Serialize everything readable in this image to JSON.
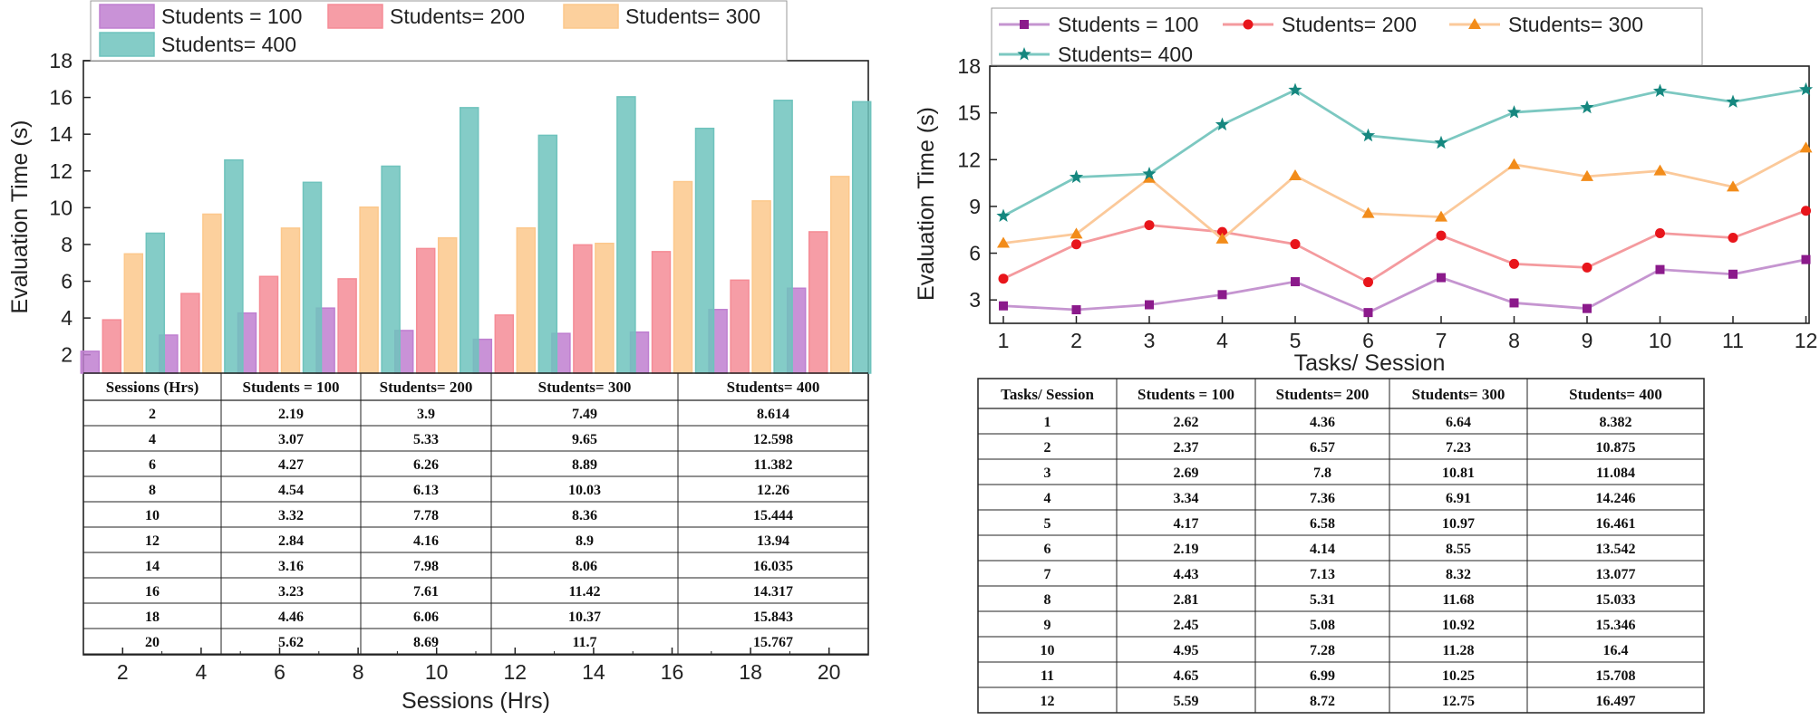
{
  "chart_data": [
    {
      "type": "bar",
      "xlabel": "Sessions (Hrs)",
      "ylabel": "Evaluation Time (s)",
      "categories": [
        "2",
        "4",
        "6",
        "8",
        "10",
        "12",
        "14",
        "16",
        "18",
        "20"
      ],
      "yticks": [
        "2",
        "4",
        "6",
        "8",
        "10",
        "12",
        "14",
        "16",
        "18"
      ],
      "ylim": [
        1,
        18
      ],
      "series": [
        {
          "name": "Students = 100",
          "color": "#bf7fd0",
          "values": [
            2.19,
            3.07,
            4.27,
            4.54,
            3.32,
            2.84,
            3.16,
            3.23,
            4.46,
            5.62
          ]
        },
        {
          "name": "Students= 200",
          "color": "#f58c96",
          "values": [
            3.9,
            5.33,
            6.26,
            6.13,
            7.78,
            4.16,
            7.98,
            7.61,
            6.06,
            8.69
          ]
        },
        {
          "name": "Students= 300",
          "color": "#fcc88c",
          "values": [
            7.49,
            9.65,
            8.89,
            10.03,
            8.36,
            8.9,
            8.06,
            11.42,
            10.37,
            11.7
          ]
        },
        {
          "name": "Students= 400",
          "color": "#6fc3bd",
          "values": [
            8.614,
            12.598,
            11.382,
            12.26,
            15.444,
            13.94,
            16.035,
            14.317,
            15.843,
            15.767
          ]
        }
      ],
      "table": {
        "headers": [
          "Sessions (Hrs)",
          "Students = 100",
          "Students= 200",
          "Students= 300",
          "Students= 400"
        ],
        "rows": [
          [
            "2",
            "2.19",
            "3.9",
            "7.49",
            "8.614"
          ],
          [
            "4",
            "3.07",
            "5.33",
            "9.65",
            "12.598"
          ],
          [
            "6",
            "4.27",
            "6.26",
            "8.89",
            "11.382"
          ],
          [
            "8",
            "4.54",
            "6.13",
            "10.03",
            "12.26"
          ],
          [
            "10",
            "3.32",
            "7.78",
            "8.36",
            "15.444"
          ],
          [
            "12",
            "2.84",
            "4.16",
            "8.9",
            "13.94"
          ],
          [
            "14",
            "3.16",
            "7.98",
            "8.06",
            "16.035"
          ],
          [
            "16",
            "3.23",
            "7.61",
            "11.42",
            "14.317"
          ],
          [
            "18",
            "4.46",
            "6.06",
            "10.37",
            "15.843"
          ],
          [
            "20",
            "5.62",
            "8.69",
            "11.7",
            "15.767"
          ]
        ]
      }
    },
    {
      "type": "line",
      "xlabel": "Tasks/ Session",
      "ylabel": "Evaluation Time (s)",
      "x": [
        "1",
        "2",
        "3",
        "4",
        "5",
        "6",
        "7",
        "8",
        "9",
        "10",
        "11",
        "12"
      ],
      "yticks": [
        "3",
        "6",
        "9",
        "12",
        "15",
        "18"
      ],
      "ylim": [
        1.5,
        18
      ],
      "series": [
        {
          "name": "Students = 100",
          "color": "#8b1a8b",
          "line_color": "#c595d0",
          "marker": "square",
          "values": [
            2.62,
            2.37,
            2.69,
            3.34,
            4.17,
            2.19,
            4.43,
            2.81,
            2.45,
            4.95,
            4.65,
            5.59
          ]
        },
        {
          "name": "Students= 200",
          "color": "#e8151b",
          "line_color": "#f49a9e",
          "marker": "circle",
          "values": [
            4.36,
            6.57,
            7.8,
            7.36,
            6.58,
            4.14,
            7.13,
            5.31,
            5.08,
            7.28,
            6.99,
            8.72
          ]
        },
        {
          "name": "Students= 300",
          "color": "#f28c1a",
          "line_color": "#fbc99a",
          "marker": "triangle",
          "values": [
            6.64,
            7.23,
            10.81,
            6.91,
            10.97,
            8.55,
            8.32,
            11.68,
            10.92,
            11.28,
            10.25,
            12.75
          ]
        },
        {
          "name": "Students= 400",
          "color": "#15877f",
          "line_color": "#7cc8c1",
          "marker": "star",
          "values": [
            8.382,
            10.875,
            11.084,
            14.246,
            16.461,
            13.542,
            13.077,
            15.033,
            15.346,
            16.4,
            15.708,
            16.497
          ]
        }
      ],
      "table": {
        "headers": [
          "Tasks/ Session",
          "Students = 100",
          "Students= 200",
          "Students= 300",
          "Students= 400"
        ],
        "rows": [
          [
            "1",
            "2.62",
            "4.36",
            "6.64",
            "8.382"
          ],
          [
            "2",
            "2.37",
            "6.57",
            "7.23",
            "10.875"
          ],
          [
            "3",
            "2.69",
            "7.8",
            "10.81",
            "11.084"
          ],
          [
            "4",
            "3.34",
            "7.36",
            "6.91",
            "14.246"
          ],
          [
            "5",
            "4.17",
            "6.58",
            "10.97",
            "16.461"
          ],
          [
            "6",
            "2.19",
            "4.14",
            "8.55",
            "13.542"
          ],
          [
            "7",
            "4.43",
            "7.13",
            "8.32",
            "13.077"
          ],
          [
            "8",
            "2.81",
            "5.31",
            "11.68",
            "15.033"
          ],
          [
            "9",
            "2.45",
            "5.08",
            "10.92",
            "15.346"
          ],
          [
            "10",
            "4.95",
            "7.28",
            "11.28",
            "16.4"
          ],
          [
            "11",
            "4.65",
            "6.99",
            "10.25",
            "15.708"
          ],
          [
            "12",
            "5.59",
            "8.72",
            "12.75",
            "16.497"
          ]
        ]
      }
    }
  ]
}
